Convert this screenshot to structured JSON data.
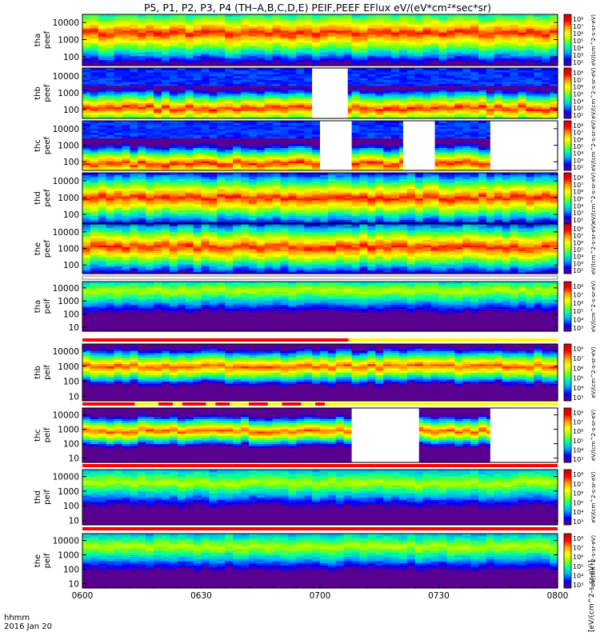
{
  "title": "P5, P1, P2, P3, P4 (TH–A,B,C,D,E) PEIF,PEEF EFlux eV/(eV*cm²*sec*sr)",
  "colorbar_unit": "eV/(cm^2-s-sr-eV)",
  "colorbar_unit_bottom": "[eV/(cm^2-s-sr-eV)]",
  "time_axis": {
    "ticks": [
      "0600",
      "0630",
      "0700",
      "0730",
      "0800"
    ],
    "tick_values_minutes": [
      0,
      30,
      60,
      90,
      120
    ],
    "label_line1": "hhmm",
    "label_line2": "2016 Jan 20"
  },
  "colormap": [
    "#5a0090",
    "#0000ff",
    "#00a8ff",
    "#00ffa0",
    "#90ff00",
    "#ffff00",
    "#ffa000",
    "#ff0000",
    "#d00000"
  ],
  "chart_data": {
    "type": "heatmap",
    "x_range_minutes": [
      0,
      120
    ],
    "y_scale": "log",
    "panels": [
      {
        "line1": "tha",
        "line2": "peef",
        "yticks": [
          "10000",
          "1000",
          "100"
        ],
        "ylim": [
          30,
          30000
        ],
        "cbar_ticks": [
          "10⁸",
          "10⁷",
          "10⁶",
          "10⁵",
          "10⁴",
          "10³",
          "10²"
        ],
        "profile": "electron",
        "peak_log": 3.4,
        "width": 0.85,
        "gaps": [],
        "flag": null
      },
      {
        "line1": "thb",
        "line2": "peef",
        "yticks": [
          "10000",
          "1000",
          "100"
        ],
        "ylim": [
          30,
          30000
        ],
        "cbar_ticks": [
          "10⁸",
          "10⁷",
          "10⁶",
          "10⁵",
          "10⁴",
          "10³",
          "10²"
        ],
        "profile": "electron_b",
        "peak_log": 2.1,
        "width": 0.55,
        "gaps": [
          [
            58,
            67
          ]
        ],
        "flag": null
      },
      {
        "line1": "thc",
        "line2": "peef",
        "yticks": [
          "10000",
          "1000",
          "100"
        ],
        "ylim": [
          30,
          30000
        ],
        "cbar_ticks": [
          "10⁸",
          "10⁷",
          "10⁶",
          "10⁵",
          "10⁴",
          "10³",
          "10²"
        ],
        "profile": "electron_b",
        "peak_log": 1.9,
        "width": 0.55,
        "gaps": [
          [
            60,
            68
          ],
          [
            81,
            89
          ],
          [
            103,
            120
          ]
        ],
        "flag": null
      },
      {
        "line1": "thd",
        "line2": "peef",
        "yticks": [
          "10000",
          "1000",
          "100"
        ],
        "ylim": [
          30,
          30000
        ],
        "cbar_ticks": [
          "10⁸",
          "10⁷",
          "10⁶",
          "10⁵",
          "10⁴",
          "10³",
          "10²"
        ],
        "profile": "electron",
        "peak_log": 3.0,
        "width": 0.8,
        "gaps": [],
        "flag": null
      },
      {
        "line1": "the",
        "line2": "peef",
        "yticks": [
          "10000",
          "1000",
          "100"
        ],
        "ylim": [
          30,
          30000
        ],
        "cbar_ticks": [
          "10⁸",
          "10⁷",
          "10⁶",
          "10⁵",
          "10⁴",
          "10³",
          "10²"
        ],
        "profile": "electron",
        "peak_log": 3.1,
        "width": 0.8,
        "gaps": [],
        "flag": null
      },
      {
        "line1": "tha",
        "line2": "peif",
        "yticks": [
          "10000",
          "1000",
          "100",
          "10"
        ],
        "ylim": [
          5,
          30000
        ],
        "cbar_ticks": [
          "10⁸",
          "10⁷",
          "10⁶",
          "10⁵",
          "10⁴",
          "10³"
        ],
        "profile": "ion",
        "peak_log": 3.8,
        "width": 0.9,
        "gaps": [],
        "flag": "white"
      },
      {
        "line1": "thb",
        "line2": "peif",
        "yticks": [
          "10000",
          "1000",
          "100",
          "10"
        ],
        "ylim": [
          5,
          30000
        ],
        "cbar_ticks": [
          "10⁸",
          "10⁷",
          "10⁶",
          "10⁵",
          "10⁴",
          "10³"
        ],
        "profile": "ion_b",
        "peak_log": 3.0,
        "width": 0.45,
        "gaps": [],
        "flag": "red_yellow"
      },
      {
        "line1": "thc",
        "line2": "peif",
        "yticks": [
          "10000",
          "1000",
          "100",
          "10"
        ],
        "ylim": [
          5,
          30000
        ],
        "cbar_ticks": [
          "10⁸",
          "10⁷",
          "10⁶",
          "10⁵",
          "10⁴",
          "10³"
        ],
        "profile": "ion_b",
        "peak_log": 2.9,
        "width": 0.4,
        "gaps": [
          [
            68,
            85
          ],
          [
            103,
            120
          ]
        ],
        "flag": "yellow_red"
      },
      {
        "line1": "thd",
        "line2": "peif",
        "yticks": [
          "10000",
          "1000",
          "100",
          "10"
        ],
        "ylim": [
          5,
          30000
        ],
        "cbar_ticks": [
          "10⁸",
          "10⁷",
          "10⁶",
          "10⁵",
          "10⁴",
          "10³"
        ],
        "profile": "ion",
        "peak_log": 3.6,
        "width": 0.9,
        "gaps": [],
        "flag": "red"
      },
      {
        "line1": "the",
        "line2": "peif",
        "yticks": [
          "10000",
          "1000",
          "100",
          "10"
        ],
        "ylim": [
          5,
          30000
        ],
        "cbar_ticks": [
          "10⁸",
          "10⁷",
          "10⁶",
          "10⁵",
          "10⁴",
          "10³"
        ],
        "profile": "ion",
        "peak_log": 3.6,
        "width": 0.9,
        "gaps": [],
        "flag": "red"
      }
    ]
  }
}
